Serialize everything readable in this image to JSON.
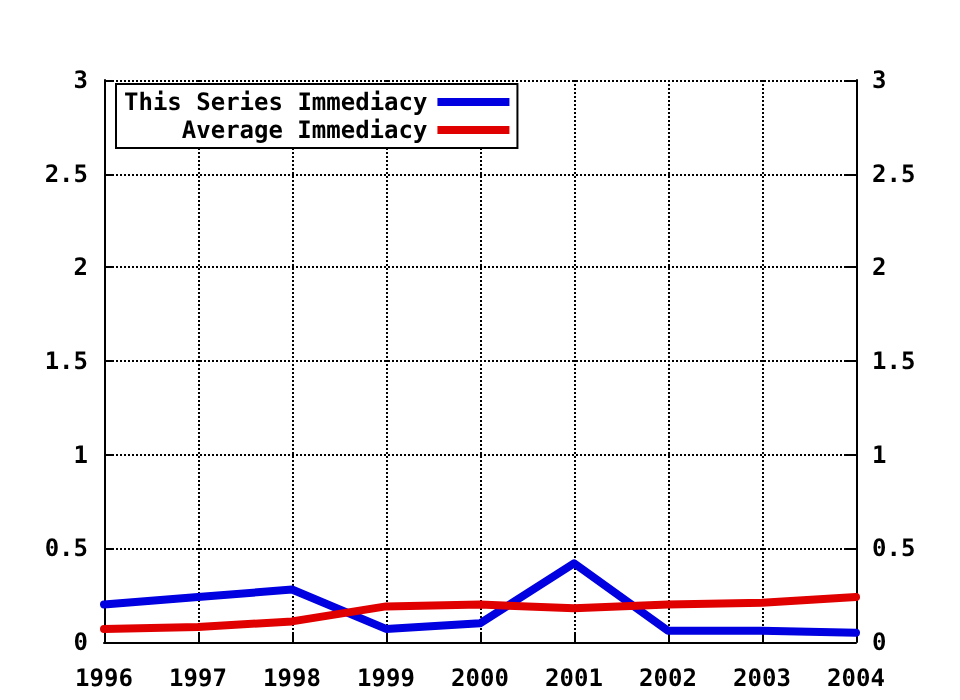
{
  "chart_data": {
    "type": "line",
    "x": [
      1996,
      1997,
      1998,
      1999,
      2000,
      2001,
      2002,
      2003,
      2004
    ],
    "series": [
      {
        "name": "This Series Immediacy",
        "color": "#0000e0",
        "values": [
          0.2,
          0.24,
          0.28,
          0.07,
          0.1,
          0.42,
          0.06,
          0.06,
          0.05
        ]
      },
      {
        "name": "Average Immediacy",
        "color": "#e00000",
        "values": [
          0.07,
          0.08,
          0.11,
          0.19,
          0.2,
          0.18,
          0.2,
          0.21,
          0.24
        ]
      }
    ],
    "xlim": [
      1996,
      2004
    ],
    "xticks": [
      1996,
      1997,
      1998,
      1999,
      2000,
      2001,
      2002,
      2003,
      2004
    ],
    "ylim": [
      0,
      3
    ],
    "yticks": [
      0,
      0.5,
      1,
      1.5,
      2,
      2.5,
      3
    ],
    "y2lim": [
      0,
      3
    ],
    "y2ticks": [
      0,
      0.5,
      1,
      1.5,
      2,
      2.5,
      3
    ],
    "grid": true,
    "legend": "top left",
    "line_style": "solid",
    "marker": "none"
  }
}
